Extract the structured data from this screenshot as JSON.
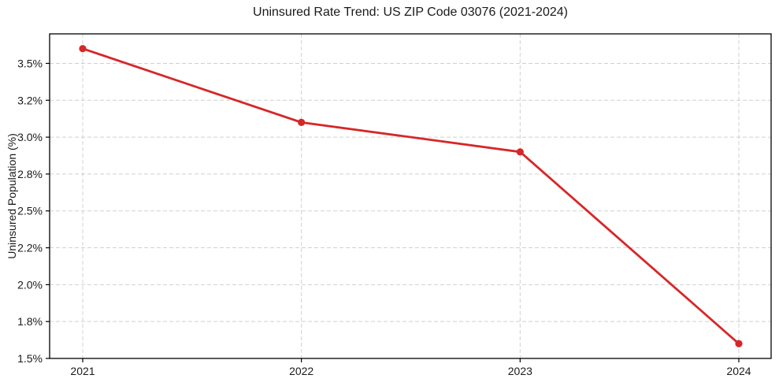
{
  "chart_data": {
    "type": "line",
    "title": "Uninsured Rate Trend: US ZIP Code 03076 (2021-2024)",
    "xlabel": "",
    "ylabel": "Uninsured Population (%)",
    "x": [
      2021,
      2022,
      2023,
      2024
    ],
    "values": [
      3.6,
      3.1,
      2.9,
      1.6
    ],
    "xtick_labels": [
      "2021",
      "2022",
      "2023",
      "2024"
    ],
    "yticks": [
      1.5,
      1.75,
      2.0,
      2.25,
      2.5,
      2.75,
      3.0,
      3.25,
      3.5
    ],
    "ytick_labels": [
      "1.5%",
      "1.8%",
      "2.0%",
      "2.2%",
      "2.5%",
      "2.8%",
      "3.0%",
      "3.2%",
      "3.5%"
    ],
    "ylim": [
      1.5,
      3.7
    ],
    "grid": true,
    "legend": false,
    "colors": {
      "line": "#d62728",
      "marker": "#d62728",
      "grid": "#d0d0d0",
      "spine": "#000000",
      "text": "#1a1a1a",
      "background": "#ffffff"
    }
  }
}
